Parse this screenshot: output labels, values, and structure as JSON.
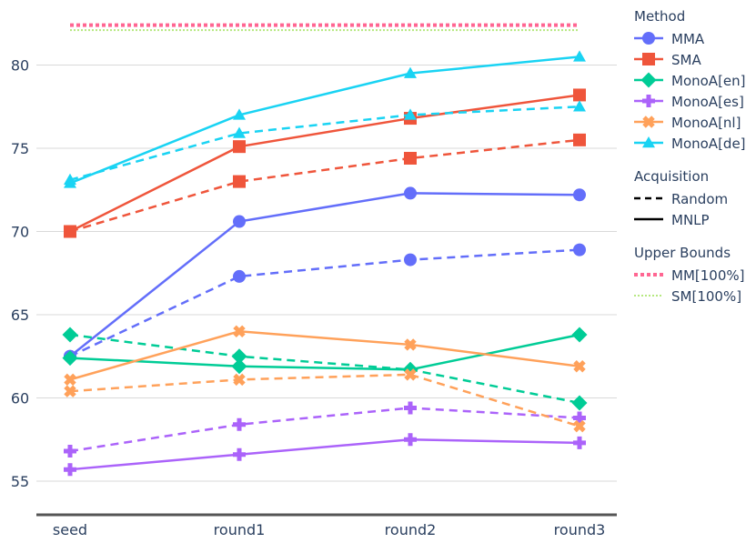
{
  "chart_data": {
    "type": "line",
    "categories": [
      "seed",
      "round1",
      "round2",
      "round3"
    ],
    "ylim": [
      53,
      83
    ],
    "yticks": [
      55,
      60,
      65,
      70,
      75,
      80
    ],
    "grid": true,
    "legend_position": "right",
    "legend_groups": [
      {
        "title": "Method",
        "entries": [
          {
            "name": "MMA",
            "color": "#636efa",
            "marker": "circle"
          },
          {
            "name": "SMA",
            "color": "#ef553b",
            "marker": "square"
          },
          {
            "name": "MonoA[en]",
            "color": "#00cc96",
            "marker": "diamond"
          },
          {
            "name": "MonoA[es]",
            "color": "#ab63fa",
            "marker": "cross"
          },
          {
            "name": "MonoA[nl]",
            "color": "#ffa15a",
            "marker": "x"
          },
          {
            "name": "MonoA[de]",
            "color": "#19d3f3",
            "marker": "triangle"
          }
        ]
      },
      {
        "title": "Acquisition",
        "entries": [
          {
            "name": "Random",
            "dash": "dashed"
          },
          {
            "name": "MNLP",
            "dash": "solid"
          }
        ]
      },
      {
        "title": "Upper Bounds",
        "entries": [
          {
            "name": "MM[100%]",
            "color": "#ff6692",
            "dash": "dotted-thick"
          },
          {
            "name": "SM[100%]",
            "color": "#b6e880",
            "dash": "dotted"
          }
        ]
      }
    ],
    "series": [
      {
        "method": "MMA",
        "acquisition": "MNLP",
        "color": "#636efa",
        "marker": "circle",
        "values": [
          62.5,
          70.6,
          72.3,
          72.2
        ]
      },
      {
        "method": "MMA",
        "acquisition": "Random",
        "color": "#636efa",
        "marker": "circle",
        "values": [
          62.5,
          67.3,
          68.3,
          68.9
        ]
      },
      {
        "method": "SMA",
        "acquisition": "MNLP",
        "color": "#ef553b",
        "marker": "square",
        "values": [
          70.0,
          75.1,
          76.8,
          78.2
        ]
      },
      {
        "method": "SMA",
        "acquisition": "Random",
        "color": "#ef553b",
        "marker": "square",
        "values": [
          70.0,
          73.0,
          74.4,
          75.5
        ]
      },
      {
        "method": "MonoA[en]",
        "acquisition": "MNLP",
        "color": "#00cc96",
        "marker": "diamond",
        "values": [
          62.4,
          61.9,
          61.7,
          63.8
        ]
      },
      {
        "method": "MonoA[en]",
        "acquisition": "Random",
        "color": "#00cc96",
        "marker": "diamond",
        "values": [
          63.8,
          62.5,
          61.7,
          59.7
        ]
      },
      {
        "method": "MonoA[es]",
        "acquisition": "MNLP",
        "color": "#ab63fa",
        "marker": "cross",
        "values": [
          55.7,
          56.6,
          57.5,
          57.3
        ]
      },
      {
        "method": "MonoA[es]",
        "acquisition": "Random",
        "color": "#ab63fa",
        "marker": "cross",
        "values": [
          56.8,
          58.4,
          59.4,
          58.8
        ]
      },
      {
        "method": "MonoA[nl]",
        "acquisition": "MNLP",
        "color": "#ffa15a",
        "marker": "x",
        "values": [
          61.1,
          64.0,
          63.2,
          61.9
        ]
      },
      {
        "method": "MonoA[nl]",
        "acquisition": "Random",
        "color": "#ffa15a",
        "marker": "x",
        "values": [
          60.4,
          61.1,
          61.4,
          58.3
        ]
      },
      {
        "method": "MonoA[de]",
        "acquisition": "MNLP",
        "color": "#19d3f3",
        "marker": "triangle",
        "values": [
          72.9,
          77.0,
          79.5,
          80.5
        ]
      },
      {
        "method": "MonoA[de]",
        "acquisition": "Random",
        "color": "#19d3f3",
        "marker": "triangle",
        "values": [
          73.1,
          75.9,
          77.0,
          77.5
        ]
      }
    ],
    "upper_bounds": [
      {
        "name": "MM[100%]",
        "value": 82.4,
        "color": "#ff6692"
      },
      {
        "name": "SM[100%]",
        "value": 82.1,
        "color": "#b6e880"
      }
    ]
  }
}
